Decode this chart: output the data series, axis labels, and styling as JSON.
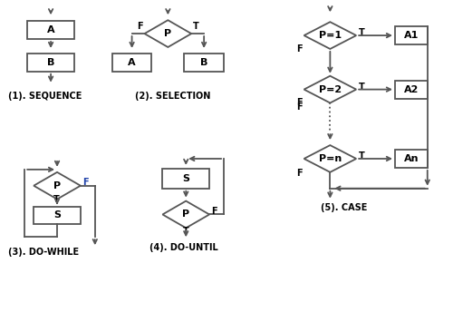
{
  "bg_color": "#ffffff",
  "box_ec": "#555555",
  "box_fc": "#ffffff",
  "text_color": "#000000",
  "lw": 1.3,
  "title1": "(1). SEQUENCE",
  "title2": "(2). SELECTION",
  "title3": "(3). DO-WHILE",
  "title4": "(4). DO-UNTIL",
  "title5": "(5). CASE"
}
